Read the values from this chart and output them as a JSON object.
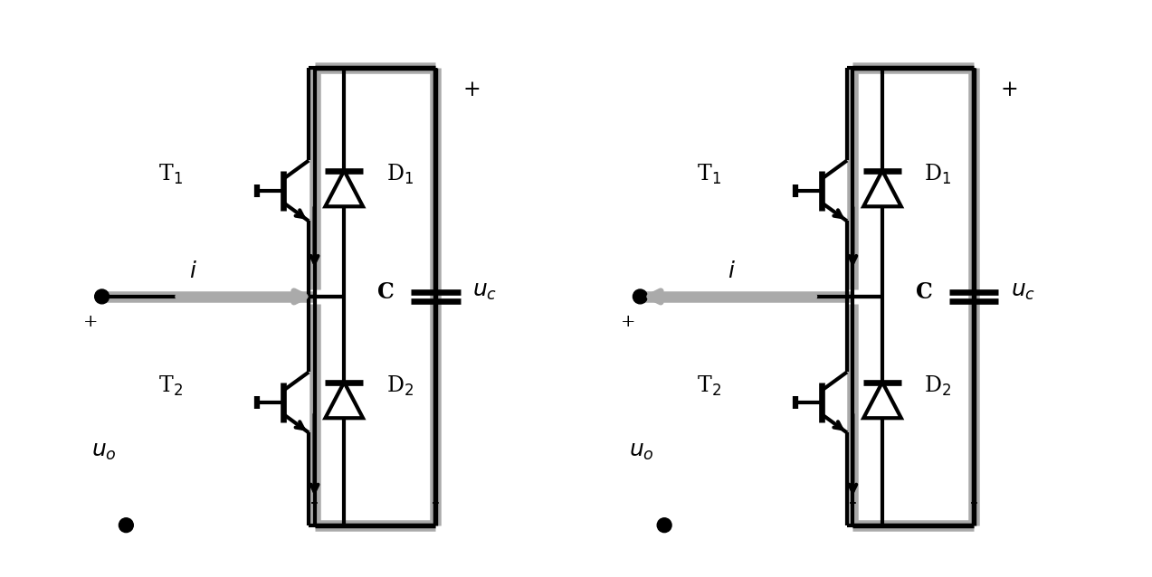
{
  "bg_color": "#ffffff",
  "line_color": "#000000",
  "gray_color": "#aaaaaa",
  "lw_black": 3.0,
  "lw_gray": 9.0,
  "fig_width": 12.73,
  "fig_height": 6.38,
  "circuits": [
    {
      "ox": 1.0,
      "oy": 3.1,
      "current_right": true
    },
    {
      "ox": 7.0,
      "oy": 3.1,
      "current_right": false
    }
  ]
}
